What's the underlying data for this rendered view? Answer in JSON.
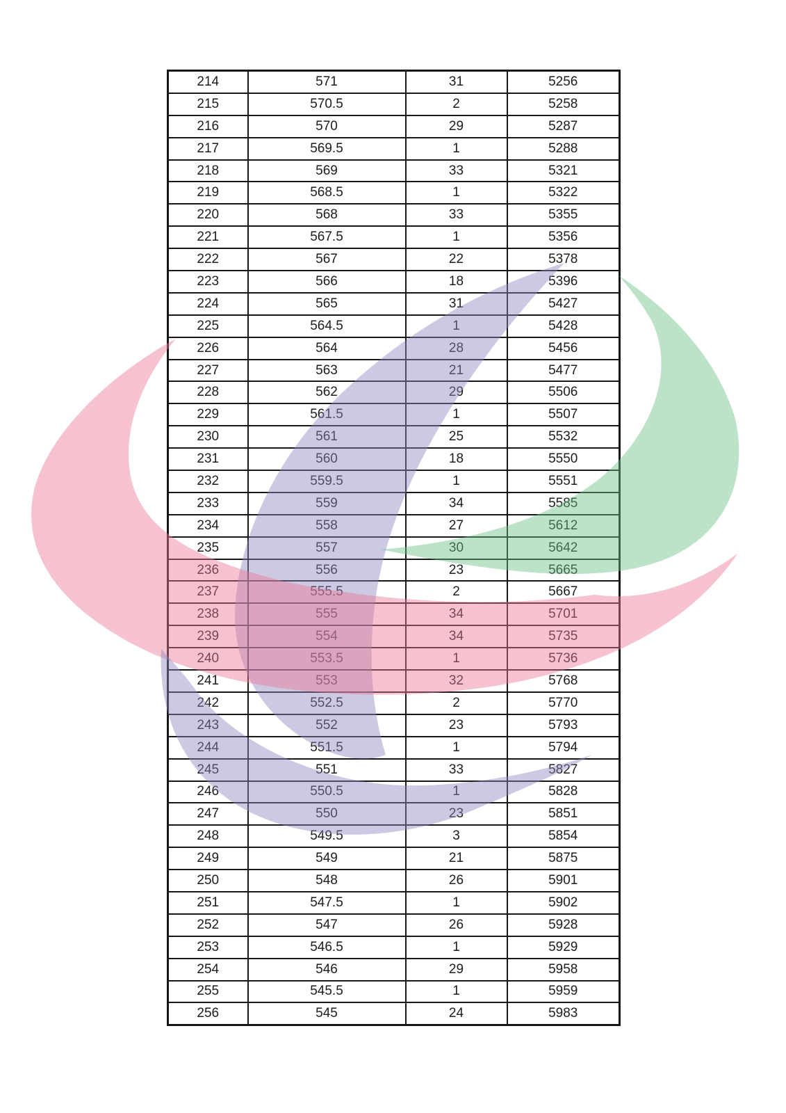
{
  "table": {
    "column_keys": [
      "serial",
      "score",
      "count",
      "cumulative"
    ],
    "rows": [
      [
        "214",
        "571",
        "31",
        "5256"
      ],
      [
        "215",
        "570.5",
        "2",
        "5258"
      ],
      [
        "216",
        "570",
        "29",
        "5287"
      ],
      [
        "217",
        "569.5",
        "1",
        "5288"
      ],
      [
        "218",
        "569",
        "33",
        "5321"
      ],
      [
        "219",
        "568.5",
        "1",
        "5322"
      ],
      [
        "220",
        "568",
        "33",
        "5355"
      ],
      [
        "221",
        "567.5",
        "1",
        "5356"
      ],
      [
        "222",
        "567",
        "22",
        "5378"
      ],
      [
        "223",
        "566",
        "18",
        "5396"
      ],
      [
        "224",
        "565",
        "31",
        "5427"
      ],
      [
        "225",
        "564.5",
        "1",
        "5428"
      ],
      [
        "226",
        "564",
        "28",
        "5456"
      ],
      [
        "227",
        "563",
        "21",
        "5477"
      ],
      [
        "228",
        "562",
        "29",
        "5506"
      ],
      [
        "229",
        "561.5",
        "1",
        "5507"
      ],
      [
        "230",
        "561",
        "25",
        "5532"
      ],
      [
        "231",
        "560",
        "18",
        "5550"
      ],
      [
        "232",
        "559.5",
        "1",
        "5551"
      ],
      [
        "233",
        "559",
        "34",
        "5585"
      ],
      [
        "234",
        "558",
        "27",
        "5612"
      ],
      [
        "235",
        "557",
        "30",
        "5642"
      ],
      [
        "236",
        "556",
        "23",
        "5665"
      ],
      [
        "237",
        "555.5",
        "2",
        "5667"
      ],
      [
        "238",
        "555",
        "34",
        "5701"
      ],
      [
        "239",
        "554",
        "34",
        "5735"
      ],
      [
        "240",
        "553.5",
        "1",
        "5736"
      ],
      [
        "241",
        "553",
        "32",
        "5768"
      ],
      [
        "242",
        "552.5",
        "2",
        "5770"
      ],
      [
        "243",
        "552",
        "23",
        "5793"
      ],
      [
        "244",
        "551.5",
        "1",
        "5794"
      ],
      [
        "245",
        "551",
        "33",
        "5827"
      ],
      [
        "246",
        "550.5",
        "1",
        "5828"
      ],
      [
        "247",
        "550",
        "23",
        "5851"
      ],
      [
        "248",
        "549.5",
        "3",
        "5854"
      ],
      [
        "249",
        "549",
        "21",
        "5875"
      ],
      [
        "250",
        "548",
        "26",
        "5901"
      ],
      [
        "251",
        "547.5",
        "1",
        "5902"
      ],
      [
        "252",
        "547",
        "26",
        "5928"
      ],
      [
        "253",
        "546.5",
        "1",
        "5929"
      ],
      [
        "254",
        "546",
        "29",
        "5958"
      ],
      [
        "255",
        "545.5",
        "1",
        "5959"
      ],
      [
        "256",
        "545",
        "24",
        "5983"
      ]
    ]
  },
  "watermark": {
    "green": "#6AC185",
    "purple": "#8E87BF",
    "pink": "#EB7894",
    "opacity": "0.45"
  }
}
